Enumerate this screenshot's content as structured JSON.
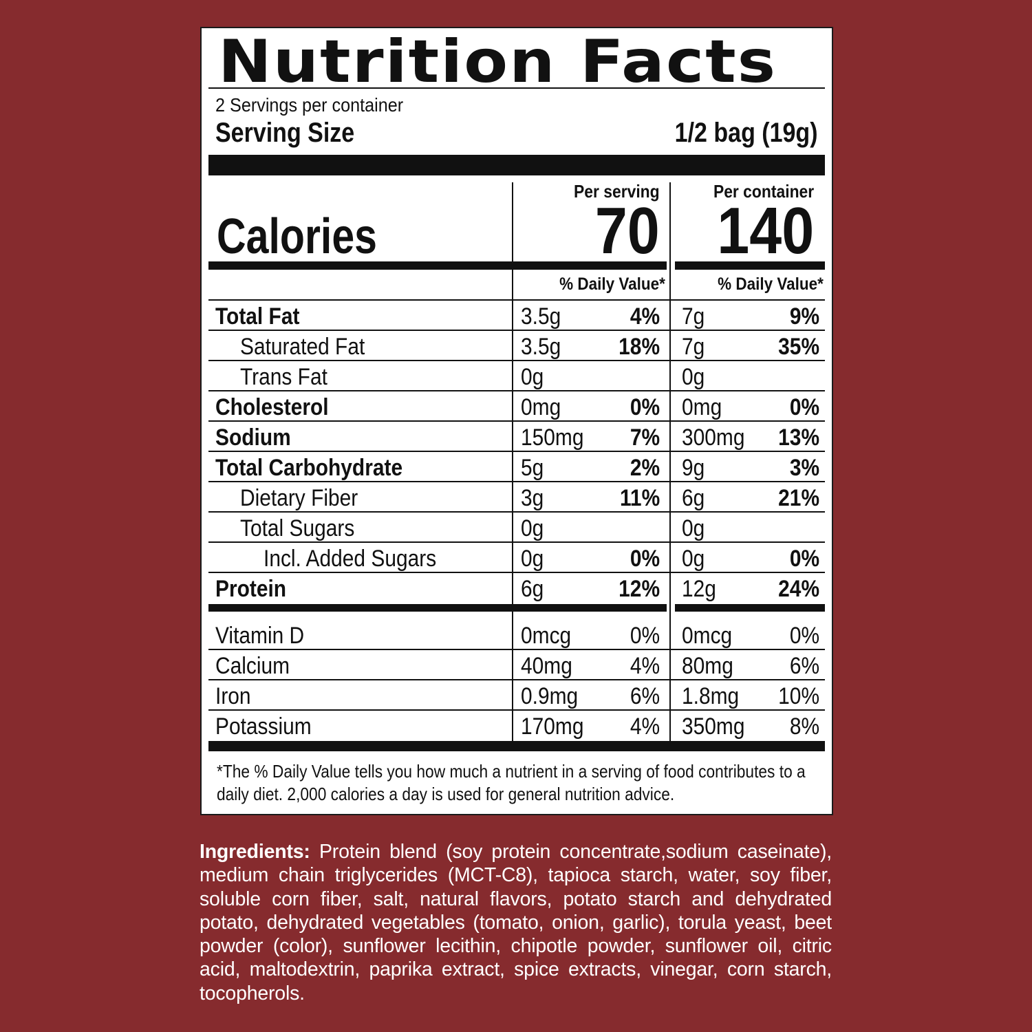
{
  "title": "Nutrition Facts",
  "servings_per_container": "2 Servings per container",
  "serving_size": {
    "label": "Serving Size",
    "value": "1/2 bag (19g)"
  },
  "calories": {
    "label": "Calories",
    "per_serving_label": "Per serving",
    "per_serving": "70",
    "per_container_label": "Per container",
    "per_container": "140"
  },
  "daily_value_header": "% Daily Value*",
  "nutrients": [
    {
      "name": "Total Fat",
      "bold": true,
      "indent": 0,
      "serv_amt": "3.5g",
      "serv_dv": "4%",
      "cont_amt": "7g",
      "cont_dv": "9%"
    },
    {
      "name": "Saturated Fat",
      "bold": false,
      "indent": 1,
      "serv_amt": "3.5g",
      "serv_dv": "18%",
      "cont_amt": "7g",
      "cont_dv": "35%"
    },
    {
      "name": "Trans Fat",
      "bold": false,
      "indent": 1,
      "serv_amt": "0g",
      "serv_dv": "",
      "cont_amt": "0g",
      "cont_dv": ""
    },
    {
      "name": "Cholesterol",
      "bold": true,
      "indent": 0,
      "serv_amt": "0mg",
      "serv_dv": "0%",
      "cont_amt": "0mg",
      "cont_dv": "0%"
    },
    {
      "name": "Sodium",
      "bold": true,
      "indent": 0,
      "serv_amt": "150mg",
      "serv_dv": "7%",
      "cont_amt": "300mg",
      "cont_dv": "13%"
    },
    {
      "name": "Total Carbohydrate",
      "bold": true,
      "indent": 0,
      "serv_amt": "5g",
      "serv_dv": "2%",
      "cont_amt": "9g",
      "cont_dv": "3%"
    },
    {
      "name": "Dietary Fiber",
      "bold": false,
      "indent": 1,
      "serv_amt": "3g",
      "serv_dv": "11%",
      "cont_amt": "6g",
      "cont_dv": "21%"
    },
    {
      "name": "Total Sugars",
      "bold": false,
      "indent": 1,
      "serv_amt": "0g",
      "serv_dv": "",
      "cont_amt": "0g",
      "cont_dv": ""
    },
    {
      "name": "Incl. Added Sugars",
      "bold": false,
      "indent": 2,
      "serv_amt": "0g",
      "serv_dv": "0%",
      "cont_amt": "0g",
      "cont_dv": "0%"
    },
    {
      "name": "Protein",
      "bold": true,
      "indent": 0,
      "serv_amt": "6g",
      "serv_dv": "12%",
      "cont_amt": "12g",
      "cont_dv": "24%"
    }
  ],
  "vitamins": [
    {
      "name": "Vitamin D",
      "serv_amt": "0mcg",
      "serv_dv": "0%",
      "cont_amt": "0mcg",
      "cont_dv": "0%"
    },
    {
      "name": "Calcium",
      "serv_amt": "40mg",
      "serv_dv": "4%",
      "cont_amt": "80mg",
      "cont_dv": "6%"
    },
    {
      "name": "Iron",
      "serv_amt": "0.9mg",
      "serv_dv": "6%",
      "cont_amt": "1.8mg",
      "cont_dv": "10%"
    },
    {
      "name": "Potassium",
      "serv_amt": "170mg",
      "serv_dv": "4%",
      "cont_amt": "350mg",
      "cont_dv": "8%"
    }
  ],
  "footnote": "*The % Daily Value tells you how much a nutrient in a serving of food contributes to a daily diet. 2,000 calories a day is used for general nutrition advice.",
  "ingredients": {
    "label": "Ingredients:",
    "text": "Protein blend (soy protein concentrate,sodium caseinate), medium chain triglycerides (MCT-C8), tapioca starch, water, soy fiber, soluble corn fiber, salt, natural flavors, potato starch and dehydrated potato, dehydrated vegetables (tomato, onion, garlic), torula yeast, beet powder (color), sunflower lecithin, chipotle powder, sunflower oil, citric acid, maltodextrin, paprika extract, spice extracts, vinegar, corn starch, tocopherols."
  },
  "colors": {
    "background": "#862B2E",
    "label": "#FFFFFF",
    "ink": "#111111"
  }
}
